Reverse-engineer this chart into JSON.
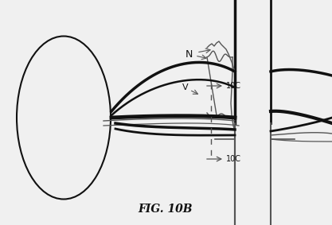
{
  "title": "FIG. 10B",
  "bg_color": "#f0f0f0",
  "line_color": "#555555",
  "thick_line_color": "#111111",
  "label_N": "N",
  "label_V": "V",
  "label_10C_upper": "10C",
  "label_10C_lower": "10C"
}
